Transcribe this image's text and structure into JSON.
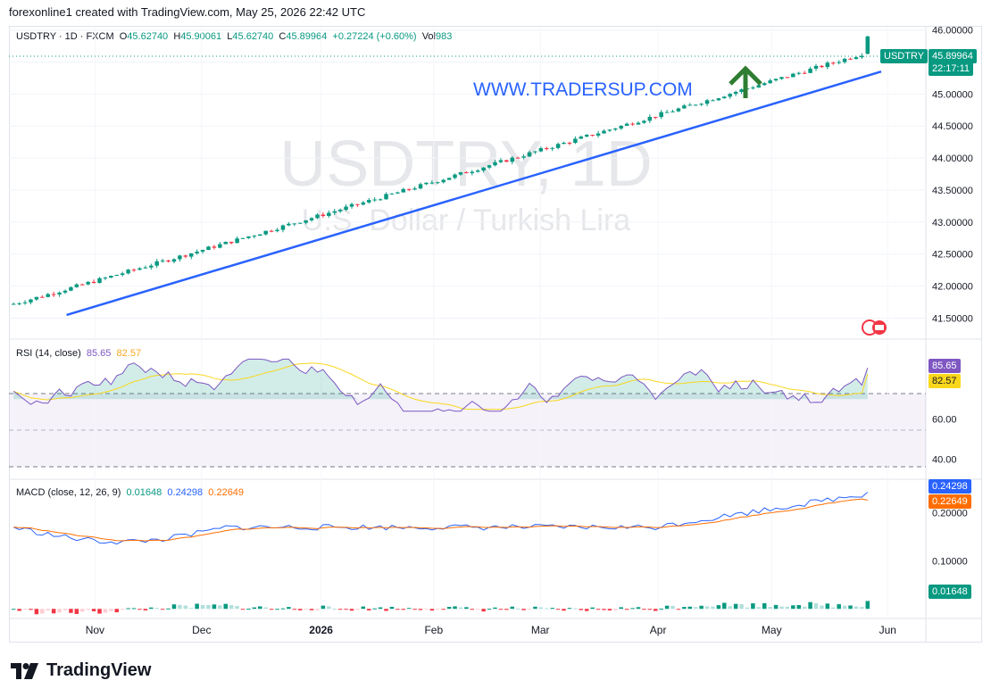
{
  "header": {
    "text": "forexonline1 created with TradingView.com, May 25, 2026 22:42 UTC"
  },
  "symbol_legend": {
    "symbol": "USDTRY · 1D · FXCM",
    "open_label": "O",
    "open": "45.62740",
    "high_label": "H",
    "high": "45.90061",
    "low_label": "L",
    "low": "45.62740",
    "close_label": "C",
    "close": "45.89964",
    "change": "+0.27224 (+0.60%)",
    "vol_label": "Vol",
    "vol": "983"
  },
  "watermark": {
    "line1": "USDTRY, 1D",
    "line2": "U.S. Dollar / Turkish Lira"
  },
  "annotation": {
    "text": "WWW.TRADERSUP.COM"
  },
  "price_tag": {
    "symbol": "USDTRY",
    "price": "45.89964",
    "countdown": "22:17:11"
  },
  "rsi_legend": {
    "label": "RSI (14, close)",
    "v1": "85.65",
    "v2": "82.57"
  },
  "macd_legend": {
    "label": "MACD (close, 12, 26, 9)",
    "v1": "0.01648",
    "v2": "0.24298",
    "v3": "0.22649"
  },
  "macd_tags": {
    "macd": "0.24298",
    "signal": "0.22649",
    "hist": "0.01648"
  },
  "footer": {
    "brand": "TradingView"
  },
  "colors": {
    "up": "#089981",
    "down": "#f23645",
    "trendline": "#2962ff",
    "arrow": "#2e7d32",
    "rsi": "#7e57c2",
    "rsi_ma": "#f9d71c",
    "macd": "#2962ff",
    "signal": "#ff6d00",
    "annotation": "#2962ff"
  },
  "chart_data": [
    {
      "type": "candlestick",
      "title": "USDTRY · 1D · FXCM",
      "x_ticks": [
        "Nov",
        "Dec",
        "2026",
        "Feb",
        "Mar",
        "Apr",
        "May",
        "Jun"
      ],
      "y_ticks": [
        "41.50000",
        "42.00000",
        "42.50000",
        "43.00000",
        "43.50000",
        "44.00000",
        "44.50000",
        "45.00000",
        "45.50000",
        "46.00000"
      ],
      "ylim": [
        41.2,
        46.05
      ],
      "series_start": 41.72,
      "series_end": 45.89964,
      "last_open": 45.6274,
      "trendline": [
        [
          0,
          41.55
        ],
        [
          1,
          45.35
        ]
      ]
    },
    {
      "type": "line",
      "title": "RSI (14, close)",
      "y_ticks": [
        "40.00",
        "60.00"
      ],
      "ylim": [
        30,
        100
      ],
      "levels": [
        70,
        50,
        30
      ],
      "last_rsi": 85.65,
      "last_rsi_ma": 82.57
    },
    {
      "type": "line",
      "title": "MACD (close, 12, 26, 9)",
      "y_ticks": [
        "0.10000",
        "0.20000"
      ],
      "ylim": [
        -0.02,
        0.27
      ],
      "last_macd": 0.24298,
      "last_signal": 0.22649,
      "last_hist": 0.01648
    }
  ]
}
